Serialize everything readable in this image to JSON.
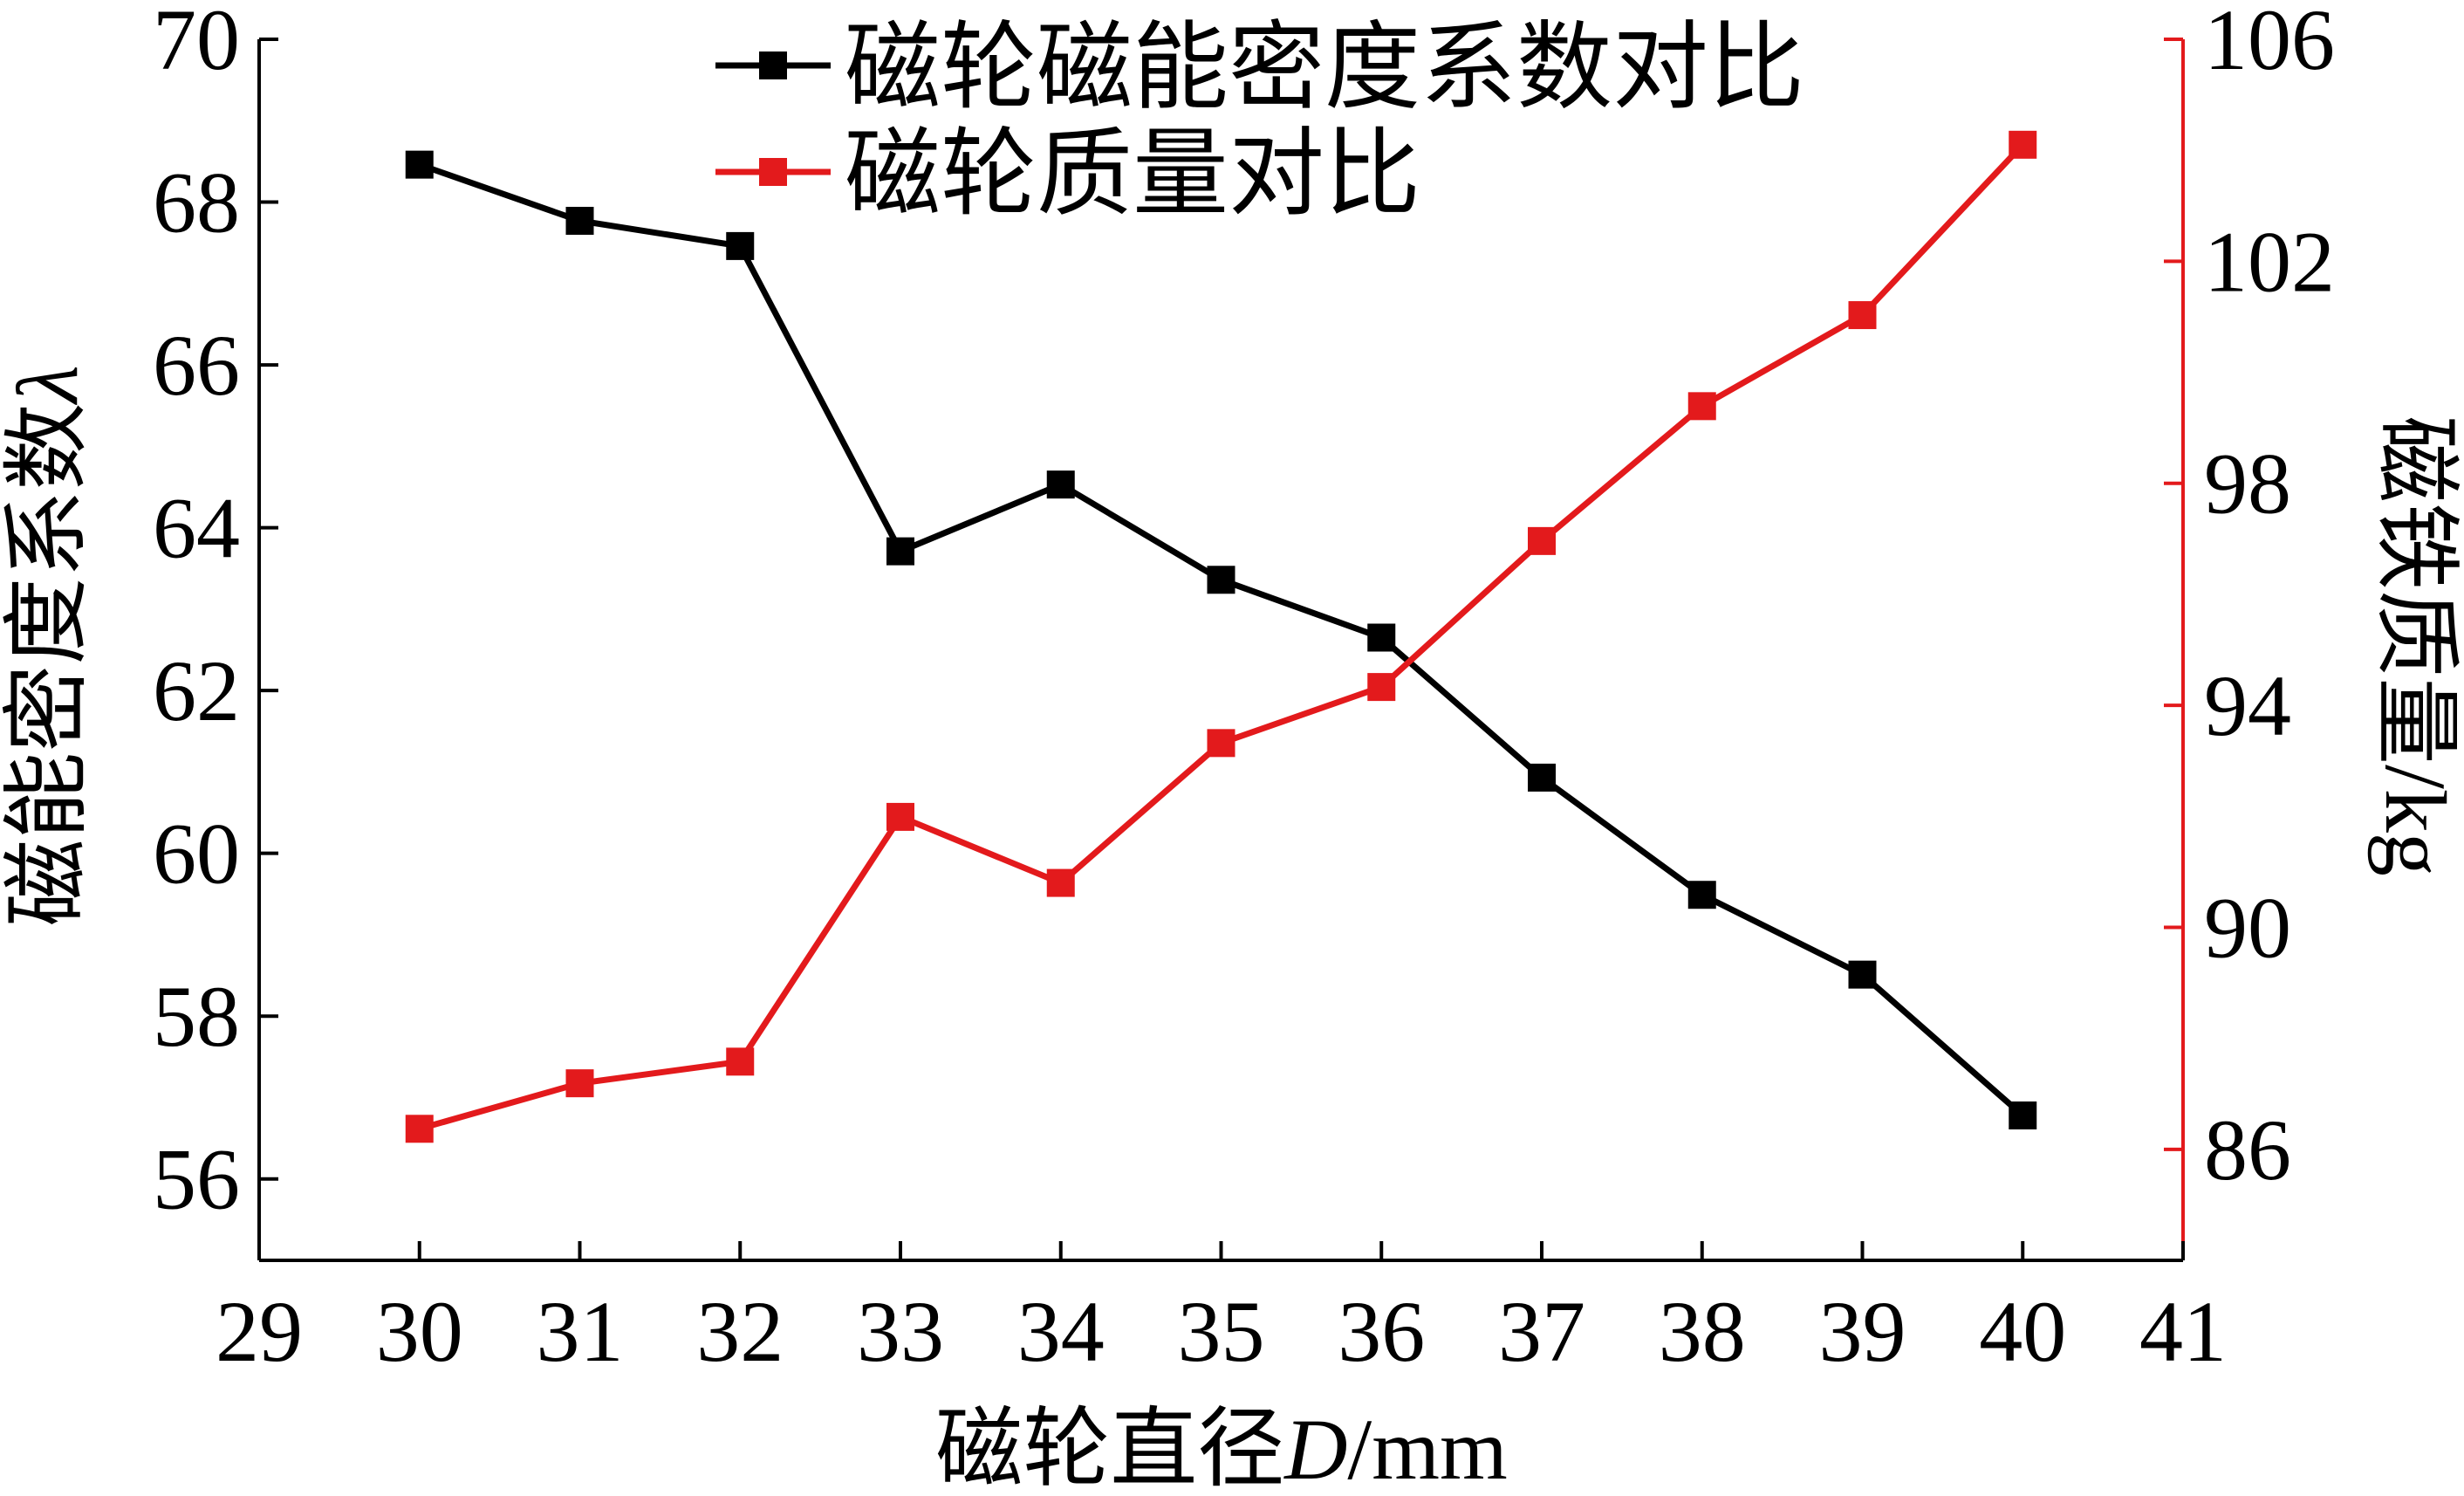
{
  "chart_data": {
    "type": "line",
    "x": [
      30,
      31,
      32,
      33,
      34,
      35,
      36,
      37,
      38,
      39,
      40
    ],
    "xlim": [
      29,
      41
    ],
    "xticks": [
      "29",
      "30",
      "31",
      "32",
      "33",
      "34",
      "35",
      "36",
      "37",
      "38",
      "39",
      "40",
      "41"
    ],
    "xlabel": {
      "prefix": "磁轮直径",
      "var": "D",
      "suffix": "/mm"
    },
    "ylabel_left": {
      "prefix": "磁能密度系数",
      "var": "λ"
    },
    "ylabel_right": "磁铁质量/kg",
    "ylim_left": [
      55,
      70
    ],
    "yticks_left": [
      "56",
      "58",
      "60",
      "62",
      "64",
      "66",
      "68",
      "70"
    ],
    "ylim_right": [
      84,
      106
    ],
    "yticks_right": [
      "86",
      "90",
      "94",
      "98",
      "102",
      "106"
    ],
    "grid": false,
    "legend_position": "top-center",
    "series": [
      {
        "name": "磁轮磁能密度系数对比",
        "axis": "left",
        "color": "#000000",
        "marker": "square",
        "values": [
          68.46,
          67.77,
          67.46,
          63.71,
          64.53,
          63.36,
          62.65,
          60.93,
          59.49,
          58.51,
          56.78
        ]
      },
      {
        "name": "磁轮质量对比",
        "axis": "right",
        "color": "#e31a1c",
        "marker": "square",
        "values": [
          86.37,
          87.19,
          87.58,
          91.99,
          90.8,
          93.32,
          94.33,
          96.96,
          99.39,
          101.03,
          104.1
        ]
      }
    ],
    "right_axis_color": "#e31a1c"
  }
}
